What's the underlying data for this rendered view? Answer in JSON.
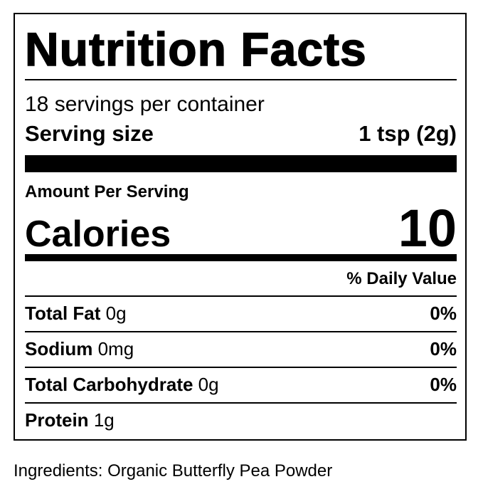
{
  "title": "Nutrition Facts",
  "servings": "18 servings per container",
  "serving_size": {
    "label": "Serving size",
    "value": "1 tsp (2g)"
  },
  "amount_per_serving": "Amount Per Serving",
  "calories": {
    "label": "Calories",
    "value": "10"
  },
  "daily_value_header": "% Daily Value",
  "nutrients": [
    {
      "name": "Total Fat",
      "amount": "0g",
      "dv": "0%"
    },
    {
      "name": "Sodium",
      "amount": "0mg",
      "dv": "0%"
    },
    {
      "name": "Total Carbohydrate",
      "amount": "0g",
      "dv": "0%"
    },
    {
      "name": "Protein",
      "amount": "1g",
      "dv": ""
    }
  ],
  "ingredients": "Ingredients: Organic Butterfly Pea Powder"
}
